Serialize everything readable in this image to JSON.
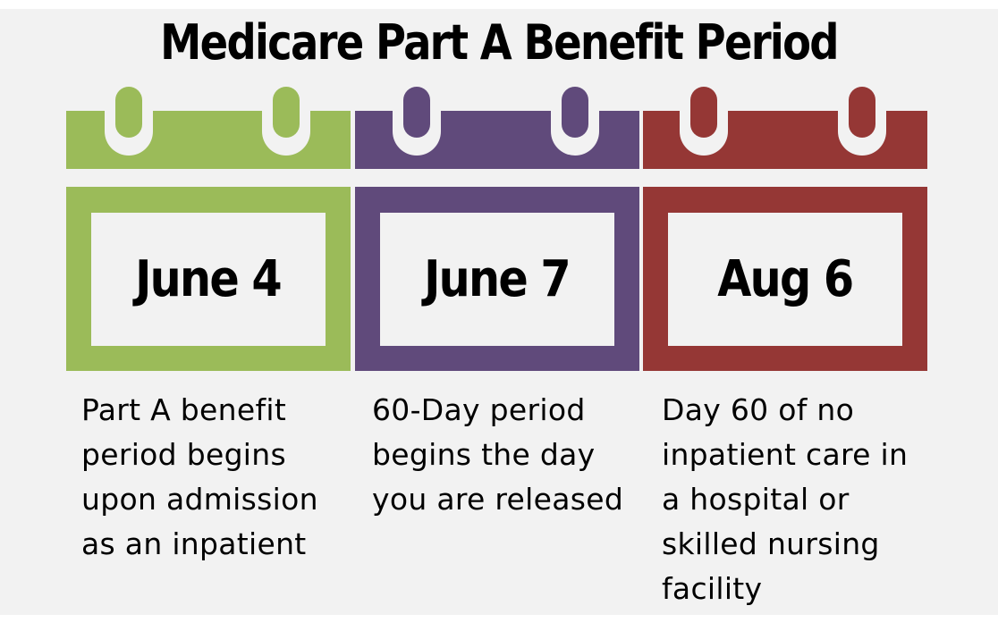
{
  "title": "Medicare Part A Benefit Period",
  "colors": {
    "background": "#f2f2f2",
    "green": "#9bbb59",
    "purple": "#604a7b",
    "red": "#953735"
  },
  "calendars": [
    {
      "date": "June 4",
      "color": "#9bbb59",
      "description": "Part A benefit period begins upon admission as an inpatient"
    },
    {
      "date": "June 7",
      "color": "#604a7b",
      "description": "60-Day period begins the day you are released"
    },
    {
      "date": "Aug 6",
      "color": "#953735",
      "description": "Day 60 of no inpatient care in a hospital or skilled nursing facility"
    }
  ]
}
